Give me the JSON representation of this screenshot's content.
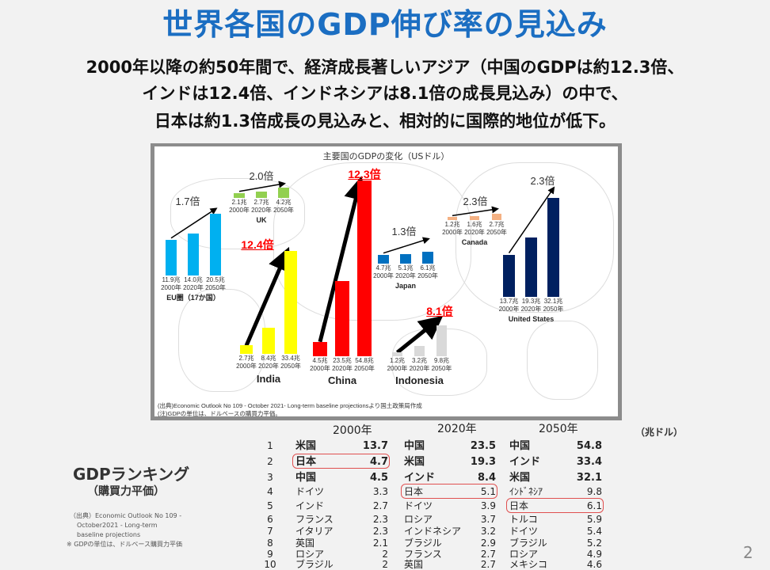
{
  "title": "世界各国のGDP伸び率の見込み",
  "subtitle": [
    "2000年以降の約50年間で、経済成長著しいアジア（中国のGDPは約12.3倍、",
    "インドは12.4倍、インドネシアは8.1倍の成長見込み）の中で、",
    "日本は約1.3倍成長の見込みと、相対的に国際的地位が低下。"
  ],
  "map": {
    "title": "主要国のGDPの変化（USドル）",
    "years": [
      "2000年",
      "2020年",
      "2050年"
    ],
    "groups": [
      {
        "name": "EU圏（17か国）",
        "multiplier": "1.7倍",
        "values": [
          11.9,
          14.0,
          20.5
        ],
        "labels": [
          "11.9兆",
          "14.0兆",
          "20.5兆"
        ],
        "color": "#00b0f0",
        "highlight": false
      },
      {
        "name": "UK",
        "multiplier": "2.0倍",
        "values": [
          2.1,
          2.7,
          4.2
        ],
        "labels": [
          "2.1兆",
          "2.7兆",
          "4.2兆"
        ],
        "color": "#92d050",
        "highlight": false
      },
      {
        "name": "India",
        "multiplier": "12.4倍",
        "values": [
          2.7,
          8.4,
          33.4
        ],
        "labels": [
          "2.7兆",
          "8.4兆",
          "33.4兆"
        ],
        "color": "#ffff00",
        "highlight": true
      },
      {
        "name": "China",
        "multiplier": "12.3倍",
        "values": [
          4.5,
          23.5,
          54.8
        ],
        "labels": [
          "4.5兆",
          "23.5兆",
          "54.8兆"
        ],
        "color": "#ff0000",
        "highlight": true
      },
      {
        "name": "Japan",
        "multiplier": "1.3倍",
        "values": [
          4.7,
          5.1,
          6.1
        ],
        "labels": [
          "4.7兆",
          "5.1兆",
          "6.1兆"
        ],
        "color": "#0070c0",
        "highlight": false
      },
      {
        "name": "Indonesia",
        "multiplier": "8.1倍",
        "values": [
          1.2,
          3.2,
          9.8
        ],
        "labels": [
          "1.2兆",
          "3.2兆",
          "9.8兆"
        ],
        "color": "#d9d9d9",
        "highlight": true
      },
      {
        "name": "Canada",
        "multiplier": "2.3倍",
        "values": [
          1.2,
          1.6,
          2.7
        ],
        "labels": [
          "1.2兆",
          "1.6兆",
          "2.7兆"
        ],
        "color": "#f4b183",
        "highlight": false
      },
      {
        "name": "United States",
        "multiplier": "2.3倍",
        "values": [
          13.7,
          19.3,
          32.1
        ],
        "labels": [
          "13.7兆",
          "19.3兆",
          "32.1兆"
        ],
        "color": "#002060",
        "highlight": false
      }
    ],
    "source": "(出典)Economic Outlook No 109 - October 2021- Long-term baseline projectionsより国土政策局作成",
    "note": "(注)GDPの単位は、ドルベースの購買力平価。"
  },
  "ranking": {
    "title": "GDPランキング",
    "subtitle": "（購買力平価）",
    "source": [
      "（出典）Economic Outlook No 109 -",
      "October2021 - Long-term",
      "baseline projections",
      "※ GDPの単位は、ドルベース購買力平価"
    ],
    "unit": "（兆ドル）",
    "years": [
      "2000年",
      "2020年",
      "2050年"
    ],
    "rows": [
      {
        "rank": "1",
        "c": [
          [
            "米国",
            "13.7"
          ],
          [
            "中国",
            "23.5"
          ],
          [
            "中国",
            "54.8"
          ]
        ]
      },
      {
        "rank": "2",
        "c": [
          [
            "日本",
            "4.7"
          ],
          [
            "米国",
            "19.3"
          ],
          [
            "インド",
            "33.4"
          ]
        ]
      },
      {
        "rank": "3",
        "c": [
          [
            "中国",
            "4.5"
          ],
          [
            "インド",
            "8.4"
          ],
          [
            "米国",
            "32.1"
          ]
        ]
      },
      {
        "rank": "4",
        "c": [
          [
            "ドイツ",
            "3.3"
          ],
          [
            "日本",
            "5.1"
          ],
          [
            "ｲﾝﾄﾞﾈｼｱ",
            "9.8"
          ]
        ]
      },
      {
        "rank": "5",
        "c": [
          [
            "インド",
            "2.7"
          ],
          [
            "ドイツ",
            "3.9"
          ],
          [
            "日本",
            "6.1"
          ]
        ]
      },
      {
        "rank": "6",
        "c": [
          [
            "フランス",
            "2.3"
          ],
          [
            "ロシア",
            "3.7"
          ],
          [
            "トルコ",
            "5.9"
          ]
        ]
      },
      {
        "rank": "7",
        "c": [
          [
            "イタリア",
            "2.3"
          ],
          [
            "インドネシア",
            "3.2"
          ],
          [
            "ドイツ",
            "5.4"
          ]
        ]
      },
      {
        "rank": "8",
        "c": [
          [
            "英国",
            "2.1"
          ],
          [
            "ブラジル",
            "2.9"
          ],
          [
            "ブラジル",
            "5.2"
          ]
        ]
      },
      {
        "rank": "9",
        "c": [
          [
            "ロシア",
            "2"
          ],
          [
            "フランス",
            "2.7"
          ],
          [
            "ロシア",
            "4.9"
          ]
        ]
      },
      {
        "rank": "10",
        "c": [
          [
            "ブラジル",
            "2"
          ],
          [
            "英国",
            "2.7"
          ],
          [
            "メキシコ",
            "4.6"
          ]
        ]
      }
    ],
    "japan_highlight": [
      "日本"
    ]
  },
  "page_number": "2"
}
